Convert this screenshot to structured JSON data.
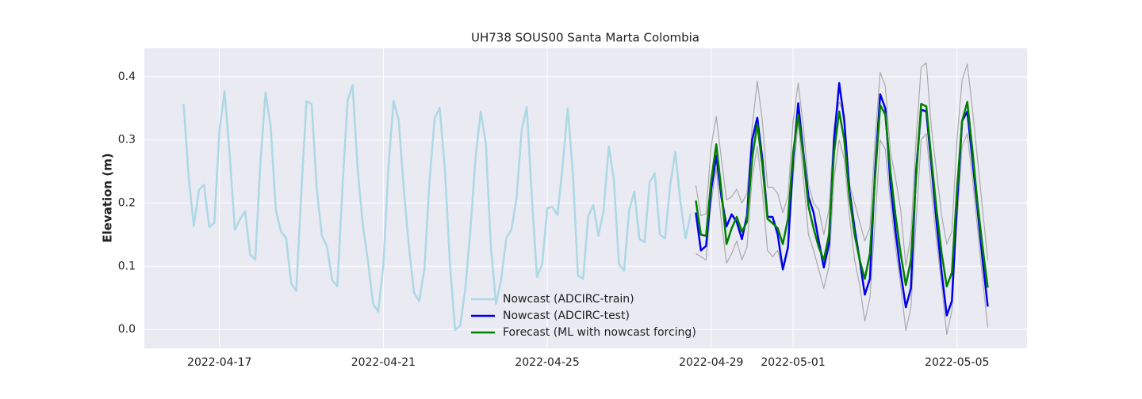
{
  "chart_data": {
    "type": "line",
    "title": "UH738 SOUS00 Santa Marta Colombia",
    "y_label": "Elevation (m)",
    "x": [
      "2022-04-16 03:00",
      "2022-04-16 06:00",
      "2022-04-16 09:00",
      "2022-04-16 12:00",
      "2022-04-16 15:00",
      "2022-04-16 18:00",
      "2022-04-16 21:00",
      "2022-04-17 00:00",
      "2022-04-17 03:00",
      "2022-04-17 06:00",
      "2022-04-17 09:00",
      "2022-04-17 12:00",
      "2022-04-17 15:00",
      "2022-04-17 18:00",
      "2022-04-17 21:00",
      "2022-04-18 00:00",
      "2022-04-18 03:00",
      "2022-04-18 06:00",
      "2022-04-18 09:00",
      "2022-04-18 12:00",
      "2022-04-18 15:00",
      "2022-04-18 18:00",
      "2022-04-18 21:00",
      "2022-04-19 00:00",
      "2022-04-19 03:00",
      "2022-04-19 06:00",
      "2022-04-19 09:00",
      "2022-04-19 12:00",
      "2022-04-19 15:00",
      "2022-04-19 18:00",
      "2022-04-19 21:00",
      "2022-04-20 00:00",
      "2022-04-20 03:00",
      "2022-04-20 06:00",
      "2022-04-20 09:00",
      "2022-04-20 12:00",
      "2022-04-20 15:00",
      "2022-04-20 18:00",
      "2022-04-20 21:00",
      "2022-04-21 00:00",
      "2022-04-21 03:00",
      "2022-04-21 06:00",
      "2022-04-21 09:00",
      "2022-04-21 12:00",
      "2022-04-21 15:00",
      "2022-04-21 18:00",
      "2022-04-21 21:00",
      "2022-04-22 00:00",
      "2022-04-22 03:00",
      "2022-04-22 06:00",
      "2022-04-22 09:00",
      "2022-04-22 12:00",
      "2022-04-22 15:00",
      "2022-04-22 18:00",
      "2022-04-22 21:00",
      "2022-04-23 00:00",
      "2022-04-23 03:00",
      "2022-04-23 06:00",
      "2022-04-23 09:00",
      "2022-04-23 12:00",
      "2022-04-23 15:00",
      "2022-04-23 18:00",
      "2022-04-23 21:00",
      "2022-04-24 00:00",
      "2022-04-24 03:00",
      "2022-04-24 06:00",
      "2022-04-24 09:00",
      "2022-04-24 12:00",
      "2022-04-24 15:00",
      "2022-04-24 18:00",
      "2022-04-24 21:00",
      "2022-04-25 00:00",
      "2022-04-25 03:00",
      "2022-04-25 06:00",
      "2022-04-25 09:00",
      "2022-04-25 12:00",
      "2022-04-25 15:00",
      "2022-04-25 18:00",
      "2022-04-25 21:00",
      "2022-04-26 00:00",
      "2022-04-26 03:00",
      "2022-04-26 06:00",
      "2022-04-26 09:00",
      "2022-04-26 12:00",
      "2022-04-26 15:00",
      "2022-04-26 18:00",
      "2022-04-26 21:00",
      "2022-04-27 00:00",
      "2022-04-27 03:00",
      "2022-04-27 06:00",
      "2022-04-27 09:00",
      "2022-04-27 12:00",
      "2022-04-27 15:00",
      "2022-04-27 18:00",
      "2022-04-27 21:00",
      "2022-04-28 00:00",
      "2022-04-28 03:00",
      "2022-04-28 06:00",
      "2022-04-28 09:00",
      "2022-04-28 12:00",
      "2022-04-28 15:00",
      "2022-04-28 18:00",
      "2022-04-28 21:00",
      "2022-04-29 00:00",
      "2022-04-29 03:00",
      "2022-04-29 06:00",
      "2022-04-29 09:00",
      "2022-04-29 12:00",
      "2022-04-29 15:00",
      "2022-04-29 18:00",
      "2022-04-29 21:00",
      "2022-04-30 00:00",
      "2022-04-30 03:00",
      "2022-04-30 06:00",
      "2022-04-30 09:00",
      "2022-04-30 12:00",
      "2022-04-30 15:00",
      "2022-04-30 18:00",
      "2022-04-30 21:00",
      "2022-05-01 00:00",
      "2022-05-01 03:00",
      "2022-05-01 06:00",
      "2022-05-01 09:00",
      "2022-05-01 12:00",
      "2022-05-01 15:00",
      "2022-05-01 18:00",
      "2022-05-01 21:00",
      "2022-05-02 00:00",
      "2022-05-02 03:00",
      "2022-05-02 06:00",
      "2022-05-02 09:00",
      "2022-05-02 12:00",
      "2022-05-02 15:00",
      "2022-05-02 18:00",
      "2022-05-02 21:00",
      "2022-05-03 00:00",
      "2022-05-03 03:00",
      "2022-05-03 06:00",
      "2022-05-03 09:00",
      "2022-05-03 12:00",
      "2022-05-03 15:00",
      "2022-05-03 18:00",
      "2022-05-03 21:00",
      "2022-05-04 00:00",
      "2022-05-04 03:00",
      "2022-05-04 06:00",
      "2022-05-04 09:00",
      "2022-05-04 12:00",
      "2022-05-04 15:00",
      "2022-05-04 18:00",
      "2022-05-04 21:00",
      "2022-05-05 00:00",
      "2022-05-05 03:00",
      "2022-05-05 06:00",
      "2022-05-05 09:00",
      "2022-05-05 12:00",
      "2022-05-05 15:00",
      "2022-05-05 18:00"
    ],
    "series": [
      {
        "color": "#aaaaaa",
        "values": [
          null,
          null,
          null,
          null,
          null,
          null,
          null,
          null,
          null,
          null,
          null,
          null,
          null,
          null,
          null,
          null,
          null,
          null,
          null,
          null,
          null,
          null,
          null,
          null,
          null,
          null,
          null,
          null,
          null,
          null,
          null,
          null,
          null,
          null,
          null,
          null,
          null,
          null,
          null,
          null,
          null,
          null,
          null,
          null,
          null,
          null,
          null,
          null,
          null,
          null,
          null,
          null,
          null,
          null,
          null,
          null,
          null,
          null,
          null,
          null,
          null,
          null,
          null,
          null,
          null,
          null,
          null,
          null,
          null,
          null,
          null,
          null,
          null,
          null,
          null,
          null,
          null,
          null,
          null,
          null,
          null,
          null,
          null,
          null,
          null,
          null,
          null,
          null,
          null,
          null,
          null,
          null,
          null,
          null,
          null,
          null,
          null,
          null,
          null,
          null,
          0.228,
          0.18,
          0.183,
          0.29,
          0.337,
          0.27,
          0.205,
          0.21,
          0.222,
          0.2,
          0.215,
          0.32,
          0.393,
          0.33,
          0.225,
          0.225,
          0.215,
          0.185,
          0.21,
          0.33,
          0.39,
          0.32,
          0.23,
          0.2,
          0.19,
          0.15,
          0.19,
          0.32,
          0.36,
          0.34,
          0.23,
          0.2,
          0.17,
          0.14,
          0.16,
          0.3,
          0.407,
          0.385,
          0.28,
          0.24,
          0.19,
          0.1,
          0.15,
          0.3,
          0.415,
          0.422,
          0.32,
          0.25,
          0.18,
          0.135,
          0.155,
          0.3,
          0.395,
          0.42,
          0.35,
          0.27,
          0.19,
          0.11
        ]
      },
      {
        "color": "#aaaaaa",
        "values": [
          null,
          null,
          null,
          null,
          null,
          null,
          null,
          null,
          null,
          null,
          null,
          null,
          null,
          null,
          null,
          null,
          null,
          null,
          null,
          null,
          null,
          null,
          null,
          null,
          null,
          null,
          null,
          null,
          null,
          null,
          null,
          null,
          null,
          null,
          null,
          null,
          null,
          null,
          null,
          null,
          null,
          null,
          null,
          null,
          null,
          null,
          null,
          null,
          null,
          null,
          null,
          null,
          null,
          null,
          null,
          null,
          null,
          null,
          null,
          null,
          null,
          null,
          null,
          null,
          null,
          null,
          null,
          null,
          null,
          null,
          null,
          null,
          null,
          null,
          null,
          null,
          null,
          null,
          null,
          null,
          null,
          null,
          null,
          null,
          null,
          null,
          null,
          null,
          null,
          null,
          null,
          null,
          null,
          null,
          null,
          null,
          null,
          null,
          null,
          null,
          0.12,
          0.115,
          0.11,
          0.2,
          0.255,
          0.17,
          0.105,
          0.12,
          0.14,
          0.11,
          0.13,
          0.24,
          0.29,
          0.22,
          0.125,
          0.115,
          0.125,
          0.095,
          0.13,
          0.24,
          0.33,
          0.24,
          0.15,
          0.125,
          0.095,
          0.065,
          0.1,
          0.24,
          0.3,
          0.27,
          0.18,
          0.11,
          0.07,
          0.013,
          0.05,
          0.17,
          0.3,
          0.285,
          0.2,
          0.13,
          0.07,
          -0.002,
          0.035,
          0.17,
          0.3,
          0.31,
          0.22,
          0.14,
          0.07,
          -0.008,
          0.03,
          0.17,
          0.29,
          0.31,
          0.24,
          0.16,
          0.08,
          0.003
        ]
      },
      {
        "name": "Nowcast (ADCIRC-train)",
        "color": "#add8e6",
        "values": [
          0.357,
          0.239,
          0.164,
          0.221,
          0.229,
          0.162,
          0.169,
          0.315,
          0.377,
          0.277,
          0.158,
          0.174,
          0.187,
          0.118,
          0.111,
          0.265,
          0.375,
          0.321,
          0.189,
          0.155,
          0.145,
          0.073,
          0.061,
          0.221,
          0.361,
          0.357,
          0.223,
          0.148,
          0.131,
          0.078,
          0.068,
          0.221,
          0.361,
          0.387,
          0.252,
          0.164,
          0.108,
          0.04,
          0.028,
          0.102,
          0.258,
          0.362,
          0.331,
          0.221,
          0.13,
          0.058,
          0.045,
          0.095,
          0.233,
          0.334,
          0.351,
          0.255,
          0.103,
          -0.001,
          0.006,
          0.064,
          0.158,
          0.271,
          0.345,
          0.295,
          0.13,
          0.04,
          0.079,
          0.144,
          0.158,
          0.208,
          0.315,
          0.352,
          0.208,
          0.083,
          0.103,
          0.192,
          0.194,
          0.181,
          0.258,
          0.35,
          0.246,
          0.085,
          0.08,
          0.179,
          0.197,
          0.148,
          0.188,
          0.29,
          0.238,
          0.103,
          0.093,
          0.189,
          0.218,
          0.143,
          0.138,
          0.233,
          0.247,
          0.15,
          0.144,
          0.229,
          0.281,
          0.202,
          0.144,
          0.183,
          null,
          null,
          null,
          null,
          null,
          null,
          null,
          null,
          null,
          null,
          null,
          null,
          null,
          null,
          null,
          null,
          null,
          null,
          null,
          null,
          null,
          null,
          null,
          null,
          null,
          null,
          null,
          null,
          null,
          null,
          null,
          null,
          null,
          null,
          null,
          null,
          null,
          null,
          null,
          null,
          null,
          null,
          null,
          null,
          null,
          null,
          null,
          null,
          null,
          null,
          null,
          null,
          null,
          null,
          null,
          null,
          null,
          null
        ]
      },
      {
        "name": "Nowcast (ADCIRC-test)",
        "color": "#0000ee",
        "values": [
          null,
          null,
          null,
          null,
          null,
          null,
          null,
          null,
          null,
          null,
          null,
          null,
          null,
          null,
          null,
          null,
          null,
          null,
          null,
          null,
          null,
          null,
          null,
          null,
          null,
          null,
          null,
          null,
          null,
          null,
          null,
          null,
          null,
          null,
          null,
          null,
          null,
          null,
          null,
          null,
          null,
          null,
          null,
          null,
          null,
          null,
          null,
          null,
          null,
          null,
          null,
          null,
          null,
          null,
          null,
          null,
          null,
          null,
          null,
          null,
          null,
          null,
          null,
          null,
          null,
          null,
          null,
          null,
          null,
          null,
          null,
          null,
          null,
          null,
          null,
          null,
          null,
          null,
          null,
          null,
          null,
          null,
          null,
          null,
          null,
          null,
          null,
          null,
          null,
          null,
          null,
          null,
          null,
          null,
          null,
          null,
          null,
          null,
          null,
          null,
          0.185,
          0.125,
          0.132,
          0.22,
          0.275,
          0.21,
          0.163,
          0.182,
          0.17,
          0.143,
          0.18,
          0.3,
          0.335,
          0.27,
          0.178,
          0.178,
          0.15,
          0.095,
          0.13,
          0.27,
          0.358,
          0.28,
          0.21,
          0.185,
          0.14,
          0.098,
          0.135,
          0.3,
          0.39,
          0.33,
          0.22,
          0.16,
          0.11,
          0.055,
          0.08,
          0.25,
          0.372,
          0.35,
          0.23,
          0.155,
          0.09,
          0.035,
          0.065,
          0.25,
          0.348,
          0.345,
          0.26,
          0.17,
          0.09,
          0.022,
          0.045,
          0.2,
          0.33,
          0.345,
          0.27,
          0.19,
          0.11,
          0.036
        ]
      },
      {
        "name": "Forecast (ML with nowcast forcing)",
        "color": "#008000",
        "values": [
          null,
          null,
          null,
          null,
          null,
          null,
          null,
          null,
          null,
          null,
          null,
          null,
          null,
          null,
          null,
          null,
          null,
          null,
          null,
          null,
          null,
          null,
          null,
          null,
          null,
          null,
          null,
          null,
          null,
          null,
          null,
          null,
          null,
          null,
          null,
          null,
          null,
          null,
          null,
          null,
          null,
          null,
          null,
          null,
          null,
          null,
          null,
          null,
          null,
          null,
          null,
          null,
          null,
          null,
          null,
          null,
          null,
          null,
          null,
          null,
          null,
          null,
          null,
          null,
          null,
          null,
          null,
          null,
          null,
          null,
          null,
          null,
          null,
          null,
          null,
          null,
          null,
          null,
          null,
          null,
          null,
          null,
          null,
          null,
          null,
          null,
          null,
          null,
          null,
          null,
          null,
          null,
          null,
          null,
          null,
          null,
          null,
          null,
          null,
          null,
          0.204,
          0.15,
          0.148,
          0.235,
          0.293,
          0.22,
          0.135,
          0.16,
          0.178,
          0.155,
          0.17,
          0.27,
          0.325,
          0.26,
          0.175,
          0.168,
          0.16,
          0.135,
          0.175,
          0.28,
          0.34,
          0.275,
          0.195,
          0.16,
          0.13,
          0.11,
          0.15,
          0.28,
          0.345,
          0.3,
          0.21,
          0.15,
          0.11,
          0.08,
          0.12,
          0.24,
          0.355,
          0.34,
          0.25,
          0.18,
          0.12,
          0.07,
          0.11,
          0.24,
          0.357,
          0.353,
          0.27,
          0.19,
          0.12,
          0.068,
          0.09,
          0.22,
          0.33,
          0.36,
          0.285,
          0.2,
          0.13,
          0.066
        ]
      }
    ],
    "xlim": [
      "2022-04-15 04:00",
      "2022-05-06 17:00"
    ],
    "xticks": [
      "2022-04-17",
      "2022-04-21",
      "2022-04-25",
      "2022-04-29",
      "2022-05-01",
      "2022-05-05"
    ],
    "ylim": [
      -0.03,
      0.445
    ],
    "yticks": [
      {
        "value": 0,
        "label": "0.0"
      },
      0.1,
      0.2,
      0.3,
      0.4
    ],
    "grid": true,
    "legend": "lower center"
  }
}
